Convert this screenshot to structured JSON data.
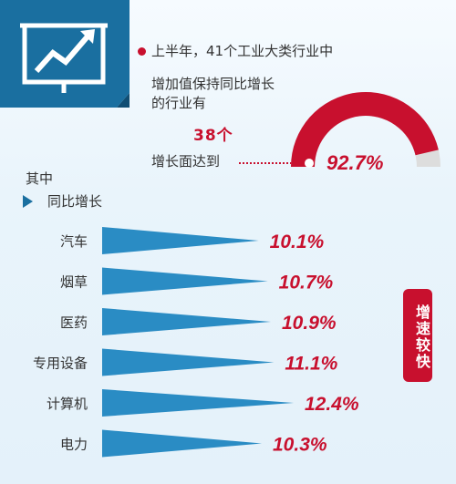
{
  "header": {
    "line1": "上半年，41个工业大类行业中",
    "line2": "增加值保持同比增长",
    "line3": "的行业有",
    "count": "38个",
    "line4": "增长面达到"
  },
  "gauge": {
    "value": 92.7,
    "label": "92.7%",
    "color": "#c8102e",
    "track_color": "#dddddd"
  },
  "section": {
    "label1": "其中",
    "label2": "同比增长"
  },
  "badge": {
    "text": "增速较快"
  },
  "colors": {
    "accent": "#c8102e",
    "bar": "#2a8cc4",
    "icon_bg": "#1a6fa0"
  },
  "chart_data": {
    "type": "bar",
    "categories": [
      "汽车",
      "烟草",
      "医药",
      "专用设备",
      "计算机",
      "电力"
    ],
    "values": [
      10.1,
      10.7,
      10.9,
      11.1,
      12.4,
      10.3
    ],
    "labels": [
      "10.1%",
      "10.7%",
      "10.9%",
      "11.1%",
      "12.4%",
      "10.3%"
    ],
    "unit": "%"
  }
}
